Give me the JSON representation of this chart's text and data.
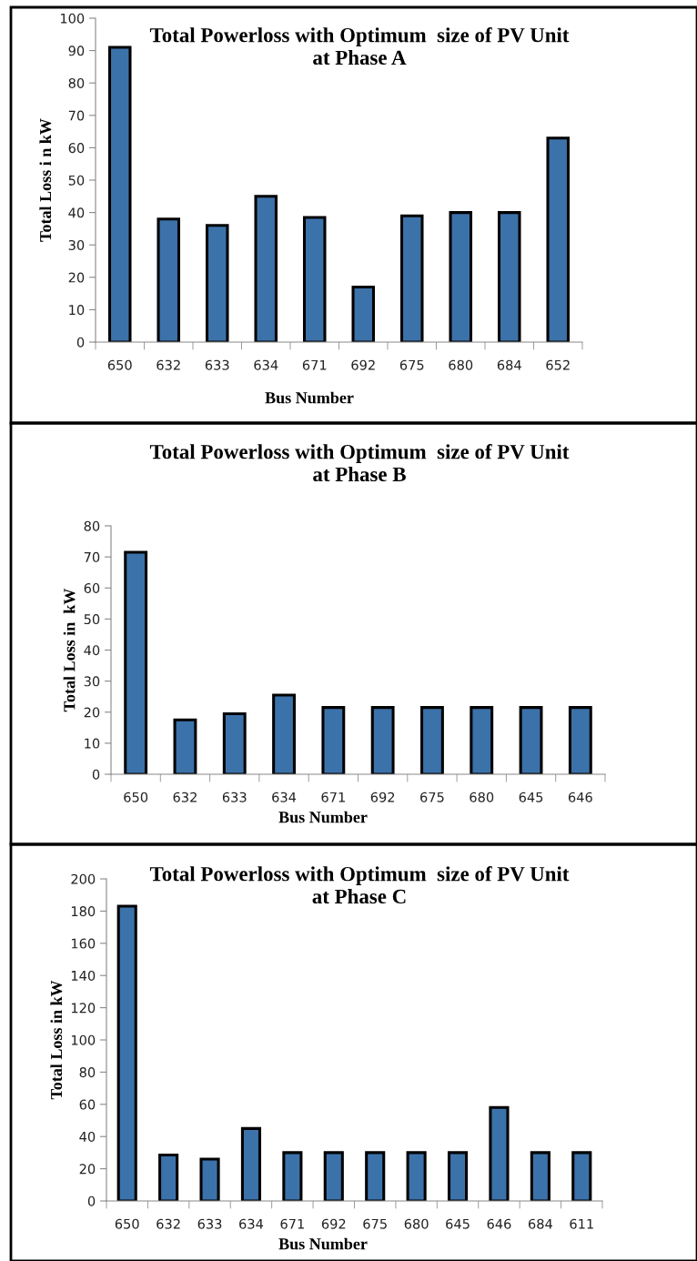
{
  "chart_data": [
    {
      "type": "bar",
      "title": "Total Powerloss with Optimum  size of PV Unit\nat Phase A",
      "xlabel": "Bus Number",
      "ylabel": "Total Loss i n kW",
      "categories": [
        "650",
        "632",
        "633",
        "634",
        "671",
        "692",
        "675",
        "680",
        "684",
        "652"
      ],
      "values": [
        91,
        38,
        36,
        45,
        38.5,
        17,
        39,
        40,
        40,
        63
      ],
      "color": "#3c72aa",
      "ylim": [
        0,
        100
      ],
      "yticks": [
        0,
        10,
        20,
        30,
        40,
        50,
        60,
        70,
        80,
        90,
        100
      ],
      "grid": false
    },
    {
      "type": "bar",
      "title": "Total Powerloss with Optimum  size of PV Unit\nat Phase B",
      "xlabel": "Bus Number",
      "ylabel": "Total Loss in  kW",
      "categories": [
        "650",
        "632",
        "633",
        "634",
        "671",
        "692",
        "675",
        "680",
        "645",
        "646"
      ],
      "values": [
        71.5,
        17.5,
        19.5,
        25.5,
        21.5,
        21.5,
        21.5,
        21.5,
        21.5,
        21.5
      ],
      "color": "#3c72aa",
      "ylim": [
        0,
        80
      ],
      "yticks": [
        0,
        10,
        20,
        30,
        40,
        50,
        60,
        70,
        80
      ],
      "grid": false
    },
    {
      "type": "bar",
      "title": "Total Powerloss with Optimum  size of PV Unit\nat Phase C",
      "xlabel": "Bus Number",
      "ylabel": "Total Loss in kW",
      "categories": [
        "650",
        "632",
        "633",
        "634",
        "671",
        "692",
        "675",
        "680",
        "645",
        "646",
        "684",
        "611"
      ],
      "values": [
        183,
        28.5,
        26,
        45,
        30,
        30,
        30,
        30,
        30,
        58,
        30,
        30
      ],
      "color": "#3c72aa",
      "ylim": [
        0,
        200
      ],
      "yticks": [
        0,
        20,
        40,
        60,
        80,
        100,
        120,
        140,
        160,
        180,
        200
      ],
      "grid": false
    }
  ]
}
